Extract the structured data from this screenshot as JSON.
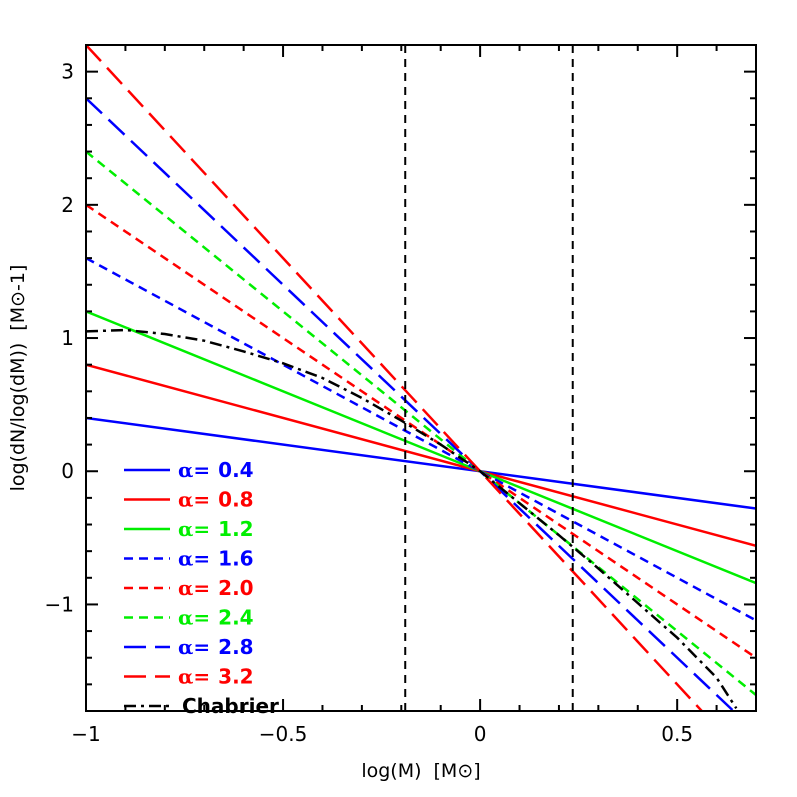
{
  "chart_data": {
    "type": "line",
    "title": "",
    "xlabel": "log(M)",
    "xlabel_unit": "[M⊙]",
    "ylabel": "log(dN/log(dM))",
    "ylabel_unit": "[M⊙-1]",
    "xlim": [
      -1.0,
      0.7
    ],
    "ylim": [
      -1.8,
      3.2
    ],
    "x_ticks": [
      -1,
      -0.5,
      0,
      0.5
    ],
    "x_tick_labels": [
      "−1",
      "−0.5",
      "0",
      "0.5"
    ],
    "y_ticks": [
      -1,
      0,
      1,
      2,
      3
    ],
    "y_tick_labels": [
      "−1",
      "0",
      "1",
      "2",
      "3"
    ],
    "vertical_lines": [
      -0.19,
      0.235
    ],
    "legend_position": "bottom-left",
    "alpha_symbol": "α=",
    "series": [
      {
        "name": "0.4",
        "slope": -0.4,
        "intercept": 0,
        "color": "#0000ff",
        "dash": "solid"
      },
      {
        "name": "0.8",
        "slope": -0.8,
        "intercept": 0,
        "color": "#ff0000",
        "dash": "solid"
      },
      {
        "name": "1.2",
        "slope": -1.2,
        "intercept": 0,
        "color": "#00ee00",
        "dash": "solid"
      },
      {
        "name": "1.6",
        "slope": -1.6,
        "intercept": 0,
        "color": "#0000ff",
        "dash": "short"
      },
      {
        "name": "2.0",
        "slope": -2.0,
        "intercept": 0,
        "color": "#ff0000",
        "dash": "short"
      },
      {
        "name": "2.4",
        "slope": -2.4,
        "intercept": 0,
        "color": "#00ee00",
        "dash": "short"
      },
      {
        "name": "2.8",
        "slope": -2.8,
        "intercept": 0,
        "color": "#0000ff",
        "dash": "long"
      },
      {
        "name": "3.2",
        "slope": -3.2,
        "intercept": 0,
        "color": "#ff0000",
        "dash": "long"
      }
    ],
    "chabrier": {
      "name": "Chabrier",
      "color": "#000000",
      "dash": "dashdot",
      "x": [
        -1.0,
        -0.9,
        -0.8,
        -0.7,
        -0.6,
        -0.5,
        -0.4,
        -0.3,
        -0.2,
        -0.1,
        0.0,
        0.1,
        0.2,
        0.3,
        0.4,
        0.5,
        0.6,
        0.65
      ],
      "y": [
        1.05,
        1.06,
        1.03,
        0.98,
        0.9,
        0.81,
        0.7,
        0.55,
        0.38,
        0.2,
        0.0,
        -0.24,
        -0.48,
        -0.73,
        -0.99,
        -1.25,
        -1.55,
        -1.78
      ]
    }
  }
}
